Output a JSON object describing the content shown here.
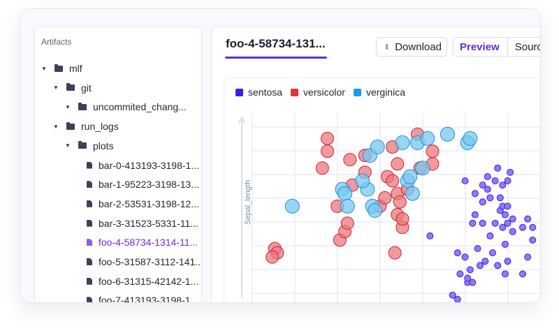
{
  "sidebar": {
    "title": "Artifacts",
    "items": [
      {
        "label": "mlf",
        "type": "folder",
        "depth": 0,
        "expanded": true,
        "selected": false
      },
      {
        "label": "git",
        "type": "folder",
        "depth": 1,
        "expanded": true,
        "selected": false
      },
      {
        "label": "uncommited_chang...",
        "type": "folder",
        "depth": 2,
        "expanded": true,
        "selected": false
      },
      {
        "label": "run_logs",
        "type": "folder",
        "depth": 1,
        "expanded": true,
        "selected": false
      },
      {
        "label": "plots",
        "type": "folder",
        "depth": 2,
        "expanded": true,
        "selected": false
      },
      {
        "label": "bar-0-413193-3198-1...",
        "type": "file",
        "depth": 3,
        "selected": false
      },
      {
        "label": "bar-1-95223-3198-13...",
        "type": "file",
        "depth": 3,
        "selected": false
      },
      {
        "label": "bar-2-53531-3198-12...",
        "type": "file",
        "depth": 3,
        "selected": false
      },
      {
        "label": "bar-3-31523-5331-11...",
        "type": "file",
        "depth": 3,
        "selected": false
      },
      {
        "label": "foo-4-58734-1314-11...",
        "type": "file",
        "depth": 3,
        "selected": true
      },
      {
        "label": "foo-5-31587-3112-141...",
        "type": "file",
        "depth": 3,
        "selected": false
      },
      {
        "label": "foo-6-31315-42142-1...",
        "type": "file",
        "depth": 3,
        "selected": false
      },
      {
        "label": "foo-7-413193-3198-1...",
        "type": "file",
        "depth": 3,
        "selected": false
      }
    ]
  },
  "main": {
    "tab_label": "foo-4-58734-131...",
    "download_label": "Download",
    "preview_label": "Preview",
    "source_label": "Sourc"
  },
  "colors": {
    "accent": "#5b2ee0",
    "sentosa": "#3b1fe8",
    "versicolor": "#e0333a",
    "verginica": "#1a9be3"
  },
  "chart_data": {
    "type": "scatter",
    "ylabel": "Sepal_length",
    "xlabel": "",
    "grid": true,
    "legend_position": "top-left",
    "legend": [
      "sentosa",
      "versicolor",
      "verginica"
    ],
    "series": [
      {
        "name": "sentosa",
        "marker_size": "small",
        "points": [
          [
            7.0,
            3.9
          ],
          [
            7.1,
            3.8
          ],
          [
            7.1,
            4.9
          ],
          [
            7.15,
            4.4
          ],
          [
            7.25,
            4.8
          ],
          [
            7.25,
            6.6
          ],
          [
            7.3,
            4.2
          ],
          [
            7.3,
            4.3
          ],
          [
            7.35,
            4.5
          ],
          [
            7.4,
            4.2
          ],
          [
            7.4,
            5.6
          ],
          [
            7.45,
            5.8
          ],
          [
            7.45,
            6.3
          ],
          [
            7.5,
            5.0
          ],
          [
            7.55,
            4.6
          ],
          [
            7.6,
            5.6
          ],
          [
            7.6,
            6.1
          ],
          [
            7.6,
            6.5
          ],
          [
            7.65,
            4.7
          ],
          [
            7.7,
            6.4
          ],
          [
            7.7,
            6.7
          ],
          [
            7.75,
            5.3
          ],
          [
            7.75,
            6.2
          ],
          [
            7.8,
            4.9
          ],
          [
            7.85,
            5.6
          ],
          [
            7.85,
            6.6
          ],
          [
            7.9,
            4.6
          ],
          [
            7.9,
            6.9
          ],
          [
            7.95,
            5.9
          ],
          [
            7.95,
            6.2
          ],
          [
            8.0,
            5.5
          ],
          [
            8.0,
            6.0
          ],
          [
            8.0,
            6.5
          ],
          [
            8.05,
            4.4
          ],
          [
            8.05,
            5.1
          ],
          [
            8.05,
            5.8
          ],
          [
            8.1,
            4.7
          ],
          [
            8.1,
            6.0
          ],
          [
            8.1,
            6.6
          ],
          [
            8.15,
            6.8
          ],
          [
            8.2,
            5.7
          ],
          [
            8.4,
            4.4
          ],
          [
            8.4,
            5.5
          ],
          [
            8.5,
            4.8
          ],
          [
            8.5,
            5.7
          ],
          [
            8.6,
            5.2
          ],
          [
            8.6,
            5.5
          ],
          [
            6.55,
            5.3
          ],
          [
            8.2,
            5.4
          ],
          [
            8.1,
            5.6
          ]
        ]
      },
      {
        "name": "versicolor",
        "marker_size": "large",
        "points": [
          [
            4.4,
            6.9
          ],
          [
            4.5,
            7.3
          ],
          [
            4.5,
            7.6
          ],
          [
            4.7,
            6.0
          ],
          [
            4.75,
            5.2
          ],
          [
            4.85,
            5.4
          ],
          [
            4.9,
            5.6
          ],
          [
            4.95,
            7.1
          ],
          [
            5.0,
            6.5
          ],
          [
            5.25,
            6.8
          ],
          [
            5.25,
            7.2
          ],
          [
            5.55,
            6.0
          ],
          [
            5.65,
            6.2
          ],
          [
            5.7,
            6.7
          ],
          [
            5.8,
            6.6
          ],
          [
            5.8,
            7.4
          ],
          [
            5.85,
            4.9
          ],
          [
            5.9,
            5.8
          ],
          [
            5.9,
            6.3
          ],
          [
            5.9,
            7.0
          ],
          [
            5.95,
            6.1
          ],
          [
            6.0,
            5.5
          ],
          [
            6.0,
            5.7
          ],
          [
            6.1,
            6.4
          ],
          [
            6.3,
            7.7
          ],
          [
            6.35,
            6.9
          ],
          [
            6.6,
            7.3
          ],
          [
            6.6,
            7.0
          ],
          [
            3.45,
            5.0
          ],
          [
            3.5,
            4.9
          ],
          [
            3.4,
            4.8
          ]
        ]
      },
      {
        "name": "verginica",
        "marker_size": "large",
        "points": [
          [
            4.8,
            6.4
          ],
          [
            4.85,
            6.3
          ],
          [
            4.9,
            6.0
          ],
          [
            5.3,
            6.4
          ],
          [
            5.35,
            7.2
          ],
          [
            5.4,
            6.0
          ],
          [
            5.45,
            5.9
          ],
          [
            5.5,
            7.4
          ],
          [
            6.0,
            7.5
          ],
          [
            6.1,
            6.6
          ],
          [
            6.15,
            6.7
          ],
          [
            6.2,
            6.3
          ],
          [
            6.3,
            7.5
          ],
          [
            6.4,
            6.9
          ],
          [
            6.5,
            7.6
          ],
          [
            6.9,
            7.7
          ],
          [
            7.3,
            7.5
          ],
          [
            7.35,
            7.6
          ],
          [
            3.8,
            6.0
          ],
          [
            5.2,
            6.6
          ]
        ]
      }
    ]
  }
}
